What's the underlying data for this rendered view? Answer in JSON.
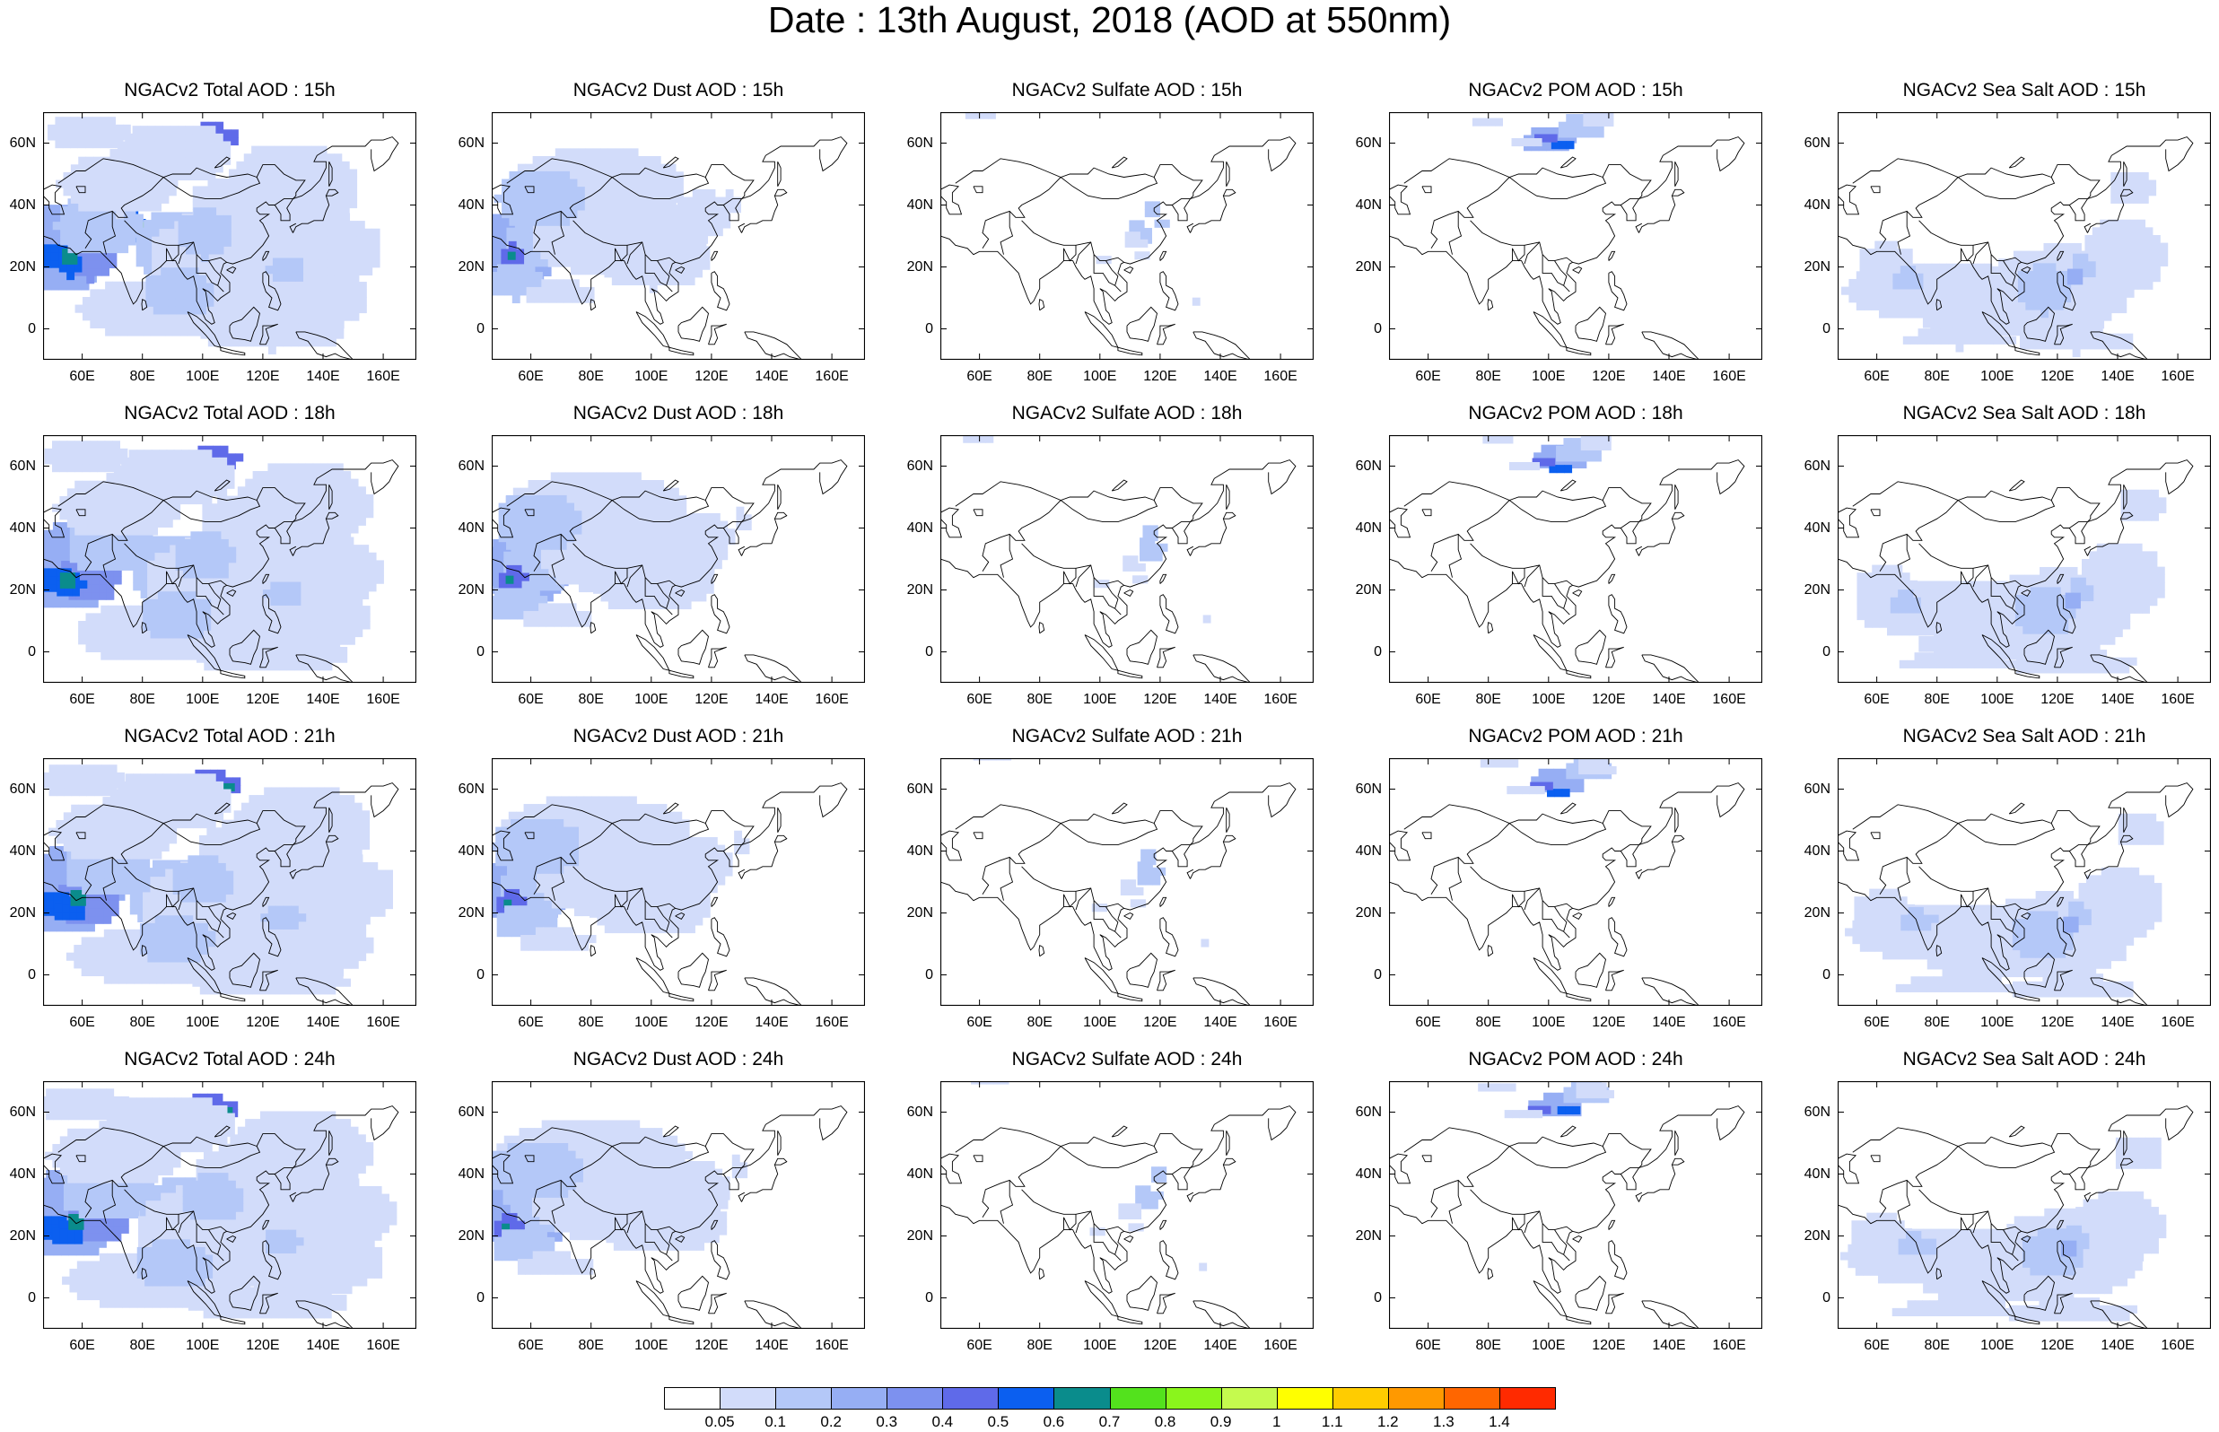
{
  "title": "Date : 13th August, 2018 (AOD at 550nm)",
  "lat_ticks": [
    "60N",
    "40N",
    "20N",
    "0"
  ],
  "lon_ticks": [
    "60E",
    "80E",
    "100E",
    "120E",
    "140E",
    "160E"
  ],
  "panels": [
    [
      {
        "title": "NGACv2 Total AOD : 15h",
        "species": "total"
      },
      {
        "title": "NGACv2 Dust AOD : 15h",
        "species": "dust"
      },
      {
        "title": "NGACv2 Sulfate AOD : 15h",
        "species": "sulfate"
      },
      {
        "title": "NGACv2 POM AOD : 15h",
        "species": "pom"
      },
      {
        "title": "NGACv2 Sea Salt AOD : 15h",
        "species": "seasalt"
      }
    ],
    [
      {
        "title": "NGACv2 Total AOD : 18h",
        "species": "total"
      },
      {
        "title": "NGACv2 Dust AOD : 18h",
        "species": "dust"
      },
      {
        "title": "NGACv2 Sulfate AOD : 18h",
        "species": "sulfate"
      },
      {
        "title": "NGACv2 POM AOD : 18h",
        "species": "pom"
      },
      {
        "title": "NGACv2 Sea Salt AOD : 18h",
        "species": "seasalt"
      }
    ],
    [
      {
        "title": "NGACv2 Total AOD : 21h",
        "species": "total"
      },
      {
        "title": "NGACv2 Dust AOD : 21h",
        "species": "dust"
      },
      {
        "title": "NGACv2 Sulfate AOD : 21h",
        "species": "sulfate"
      },
      {
        "title": "NGACv2 POM AOD : 21h",
        "species": "pom"
      },
      {
        "title": "NGACv2 Sea Salt AOD : 21h",
        "species": "seasalt"
      }
    ],
    [
      {
        "title": "NGACv2 Total AOD : 24h",
        "species": "total"
      },
      {
        "title": "NGACv2 Dust AOD : 24h",
        "species": "dust"
      },
      {
        "title": "NGACv2 Sulfate AOD : 24h",
        "species": "sulfate"
      },
      {
        "title": "NGACv2 POM AOD : 24h",
        "species": "pom"
      },
      {
        "title": "NGACv2 Sea Salt  AOD : 24h",
        "species": "seasalt"
      }
    ]
  ],
  "colorbar": {
    "labels": [
      "0.05",
      "0.1",
      "0.2",
      "0.3",
      "0.4",
      "0.5",
      "0.6",
      "0.7",
      "0.8",
      "0.9",
      "1",
      "1.1",
      "1.2",
      "1.3",
      "1.4"
    ],
    "colors": [
      "#ffffff",
      "#d2dcfa",
      "#b4c8f8",
      "#96aef4",
      "#7d91ef",
      "#5f6ae9",
      "#0b5ff0",
      "#0a8c8c",
      "#53e21d",
      "#8af51c",
      "#c5fa4e",
      "#ffff00",
      "#ffcc00",
      "#ff9900",
      "#ff6600",
      "#ff2a00"
    ]
  }
}
